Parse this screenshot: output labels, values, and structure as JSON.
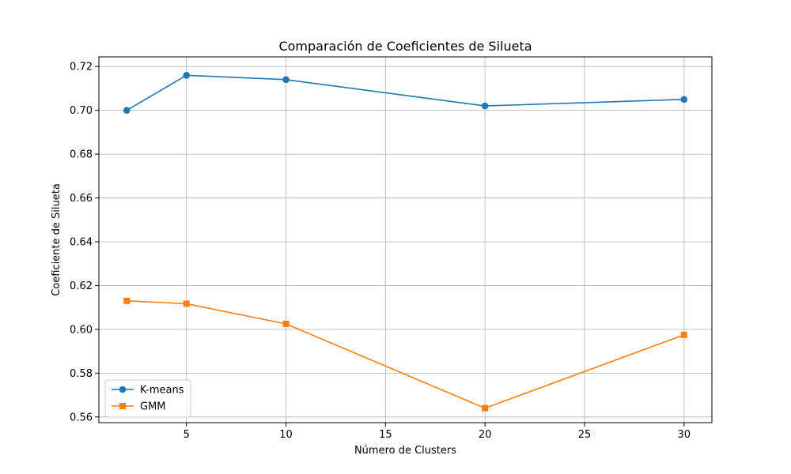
{
  "chart_data": {
    "type": "line",
    "title": "Comparación de Coeficientes de Silueta",
    "xlabel": "Número de Clusters",
    "ylabel": "Coeficiente de Silueta",
    "xlim": [
      0.6,
      31.4
    ],
    "ylim": [
      0.5574,
      0.7244
    ],
    "x_ticks": [
      5,
      10,
      15,
      20,
      25,
      30
    ],
    "x_tick_labels": [
      "5",
      "10",
      "15",
      "20",
      "25",
      "30"
    ],
    "y_ticks": [
      0.56,
      0.58,
      0.6,
      0.62,
      0.64,
      0.66,
      0.68,
      0.7,
      0.72
    ],
    "y_tick_labels": [
      "0.56",
      "0.58",
      "0.60",
      "0.62",
      "0.64",
      "0.66",
      "0.68",
      "0.70",
      "0.72"
    ],
    "grid": true,
    "legend_position": "lower-left",
    "x": [
      2,
      5,
      10,
      20,
      30
    ],
    "series": [
      {
        "name": "K-means",
        "values": [
          0.7,
          0.716,
          0.714,
          0.702,
          0.705
        ],
        "color": "#1f77b4",
        "marker": "circle"
      },
      {
        "name": "GMM",
        "values": [
          0.613,
          0.6117,
          0.6025,
          0.564,
          0.5975
        ],
        "color": "#ff7f0e",
        "marker": "square"
      }
    ]
  }
}
